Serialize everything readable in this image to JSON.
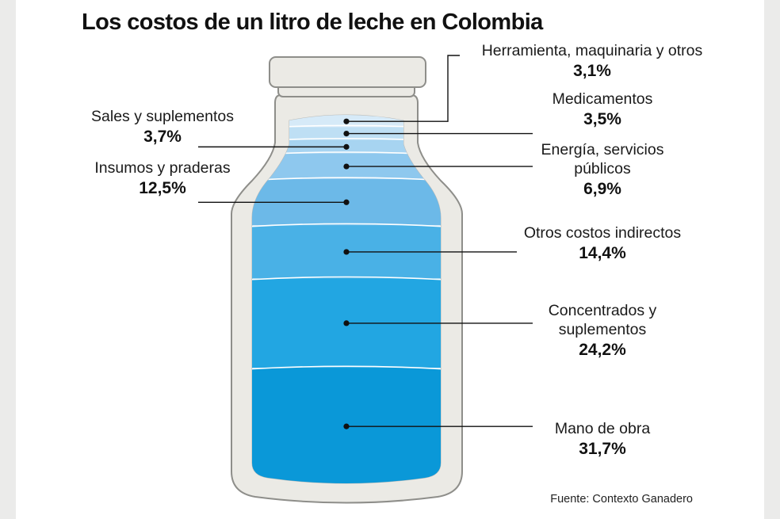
{
  "title": "Los costos de un litro de leche en Colombia",
  "source": "Fuente: Contexto Ganadero",
  "chart_data": {
    "type": "stacked-bar",
    "title": "Los costos de un litro de leche en Colombia",
    "unit": "%",
    "segments": [
      {
        "name": "Mano de obra",
        "value": 31.7,
        "label": "31,7%",
        "color": "#0a98d8"
      },
      {
        "name": "Concentrados y suplementos",
        "value": 24.2,
        "label": "24,2%",
        "color": "#22a6e2"
      },
      {
        "name": "Otros costos indirectos",
        "value": 14.4,
        "label": "14,4%",
        "color": "#49b1e6"
      },
      {
        "name": "Insumos y praderas",
        "value": 12.5,
        "label": "12,5%",
        "color": "#6cb9e8"
      },
      {
        "name": "Energía, servicios públicos",
        "value": 6.9,
        "label": "6,9%",
        "color": "#8ec8ee"
      },
      {
        "name": "Sales y suplementos",
        "value": 3.7,
        "label": "3,7%",
        "color": "#a7d4f1"
      },
      {
        "name": "Medicamentos",
        "value": 3.5,
        "label": "3,5%",
        "color": "#bedff4"
      },
      {
        "name": "Herramienta, maquinaria y otros",
        "value": 3.1,
        "label": "3,1%",
        "color": "#d6eaf8"
      }
    ]
  },
  "labels": [
    {
      "id": "herramienta",
      "lines": [
        "Herramienta, maquinaria y otros"
      ]
    },
    {
      "id": "medicamentos",
      "lines": [
        "Medicamentos"
      ]
    },
    {
      "id": "sales",
      "lines": [
        "Sales y suplementos"
      ]
    },
    {
      "id": "energia",
      "lines": [
        "Energía, servicios",
        "públicos"
      ]
    },
    {
      "id": "insumos",
      "lines": [
        "Insumos y praderas"
      ]
    },
    {
      "id": "otros",
      "lines": [
        "Otros costos indirectos"
      ]
    },
    {
      "id": "concentrados",
      "lines": [
        "Concentrados y",
        "suplementos"
      ]
    },
    {
      "id": "mano",
      "lines": [
        "Mano de obra"
      ]
    }
  ]
}
